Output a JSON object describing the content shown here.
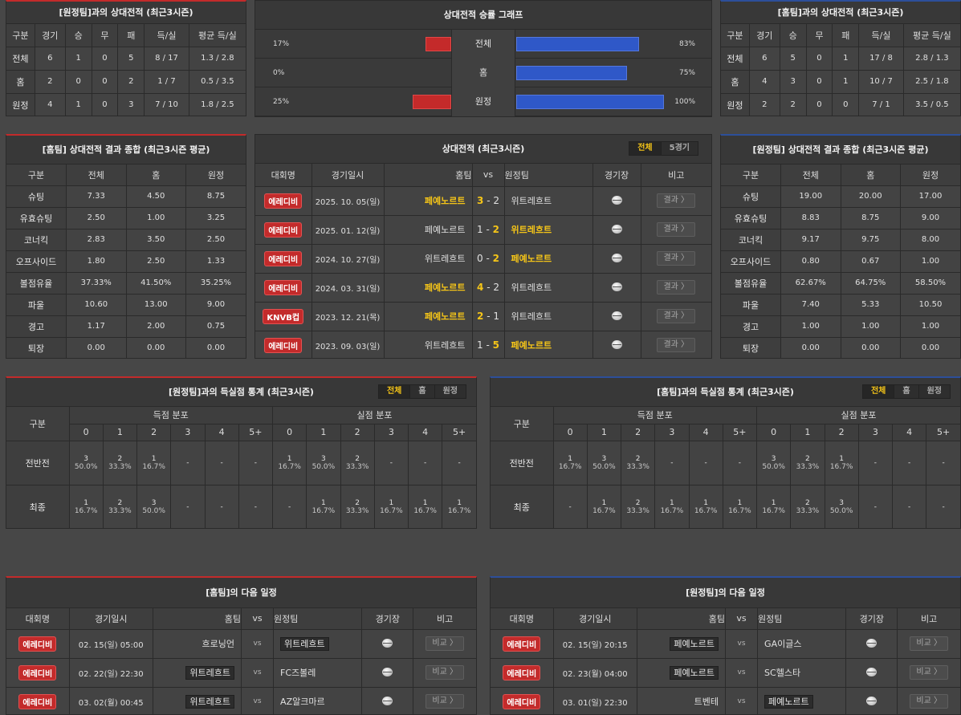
{
  "p1": {
    "title": "[원정팀]과의 상대전적 (최근3시즌)",
    "headers": [
      "구분",
      "경기",
      "승",
      "무",
      "패",
      "득/실",
      "평균 득/실"
    ],
    "rows": [
      [
        "전체",
        "6",
        "1",
        "0",
        "5",
        "8 / 17",
        "1.3 / 2.8"
      ],
      [
        "홈",
        "2",
        "0",
        "0",
        "2",
        "1 / 7",
        "0.5 / 3.5"
      ],
      [
        "원정",
        "4",
        "1",
        "0",
        "3",
        "7 / 10",
        "1.8 / 2.5"
      ]
    ]
  },
  "p2": {
    "title": "상대전적 승률 그래프",
    "rows": [
      {
        "left": "17%",
        "label": "전체",
        "right": "83%",
        "lv": 17,
        "rv": 83
      },
      {
        "left": "0%",
        "label": "홈",
        "right": "75%",
        "lv": 0,
        "rv": 75
      },
      {
        "left": "25%",
        "label": "원정",
        "right": "100%",
        "lv": 25,
        "rv": 100
      }
    ]
  },
  "p3": {
    "title": "[홈팀]과의 상대전적 (최근3시즌)",
    "headers": [
      "구분",
      "경기",
      "승",
      "무",
      "패",
      "득/실",
      "평균 득/실"
    ],
    "rows": [
      [
        "전체",
        "6",
        "5",
        "0",
        "1",
        "17 / 8",
        "2.8 / 1.3"
      ],
      [
        "홈",
        "4",
        "3",
        "0",
        "1",
        "10 / 7",
        "2.5 / 1.8"
      ],
      [
        "원정",
        "2",
        "2",
        "0",
        "0",
        "7 / 1",
        "3.5 / 0.5"
      ]
    ]
  },
  "p4": {
    "title": "[홈팀] 상대전적 결과 종합 (최근3시즌 평균)",
    "headers": [
      "구분",
      "전체",
      "홈",
      "원정"
    ],
    "rows": [
      [
        "슈팅",
        "7.33",
        "4.50",
        "8.75"
      ],
      [
        "유효슈팅",
        "2.50",
        "1.00",
        "3.25"
      ],
      [
        "코너킥",
        "2.83",
        "3.50",
        "2.50"
      ],
      [
        "오프사이드",
        "1.80",
        "2.50",
        "1.33"
      ],
      [
        "볼점유율",
        "37.33%",
        "41.50%",
        "35.25%"
      ],
      [
        "파울",
        "10.60",
        "13.00",
        "9.00"
      ],
      [
        "경고",
        "1.17",
        "2.00",
        "0.75"
      ],
      [
        "퇴장",
        "0.00",
        "0.00",
        "0.00"
      ]
    ]
  },
  "p5": {
    "title": "상대전적 (최근3시즌)",
    "toggle": [
      "전체",
      "5경기"
    ],
    "headers": {
      "league": "대회명",
      "date": "경기일시",
      "home": "홈팀",
      "vs": "vs",
      "away": "원정팀",
      "stadium": "경기장",
      "note": "비고"
    },
    "result_label": "결과 〉",
    "matches": [
      {
        "league": "에레디비",
        "date": "2025. 10. 05(일)",
        "home": "페예노르트",
        "hs": "3",
        "as": "2",
        "away": "위트레흐트",
        "hw": "home"
      },
      {
        "league": "에레디비",
        "date": "2025. 01. 12(일)",
        "home": "페예노르트",
        "hs": "1",
        "as": "2",
        "away": "위트레흐트",
        "hw": "away"
      },
      {
        "league": "에레디비",
        "date": "2024. 10. 27(일)",
        "home": "위트레흐트",
        "hs": "0",
        "as": "2",
        "away": "페예노르트",
        "hw": "away"
      },
      {
        "league": "에레디비",
        "date": "2024. 03. 31(일)",
        "home": "페예노르트",
        "hs": "4",
        "as": "2",
        "away": "위트레흐트",
        "hw": "home"
      },
      {
        "league": "KNVB컵",
        "date": "2023. 12. 21(목)",
        "home": "페예노르트",
        "hs": "2",
        "as": "1",
        "away": "위트레흐트",
        "hw": "home"
      },
      {
        "league": "에레디비",
        "date": "2023. 09. 03(일)",
        "home": "위트레흐트",
        "hs": "1",
        "as": "5",
        "away": "페예노르트",
        "hw": "away"
      }
    ]
  },
  "p6": {
    "title": "[원정팀] 상대전적 결과 종합 (최근3시즌 평균)",
    "headers": [
      "구분",
      "전체",
      "홈",
      "원정"
    ],
    "rows": [
      [
        "슈팅",
        "19.00",
        "20.00",
        "17.00"
      ],
      [
        "유효슈팅",
        "8.83",
        "8.75",
        "9.00"
      ],
      [
        "코너킥",
        "9.17",
        "9.75",
        "8.00"
      ],
      [
        "오프사이드",
        "0.80",
        "0.67",
        "1.00"
      ],
      [
        "볼점유율",
        "62.67%",
        "64.75%",
        "58.50%"
      ],
      [
        "파울",
        "7.40",
        "5.33",
        "10.50"
      ],
      [
        "경고",
        "1.00",
        "1.00",
        "1.00"
      ],
      [
        "퇴장",
        "0.00",
        "0.00",
        "0.00"
      ]
    ]
  },
  "p7": {
    "title": "[원정팀]과의 득실점 통계 (최근3시즌)",
    "toggle": [
      "전체",
      "홈",
      "원정"
    ],
    "col": "구분",
    "g1": "득점 분포",
    "g2": "실점 분포",
    "cols": [
      "0",
      "1",
      "2",
      "3",
      "4",
      "5+"
    ],
    "rows": [
      {
        "label": "전반전",
        "cells": [
          [
            "3",
            "50.0%"
          ],
          [
            "2",
            "33.3%"
          ],
          [
            "1",
            "16.7%"
          ],
          [
            "-",
            ""
          ],
          [
            "-",
            ""
          ],
          [
            "-",
            ""
          ],
          [
            "1",
            "16.7%"
          ],
          [
            "3",
            "50.0%"
          ],
          [
            "2",
            "33.3%"
          ],
          [
            "-",
            ""
          ],
          [
            "-",
            ""
          ],
          [
            "-",
            ""
          ]
        ]
      },
      {
        "label": "최종",
        "cells": [
          [
            "1",
            "16.7%"
          ],
          [
            "2",
            "33.3%"
          ],
          [
            "3",
            "50.0%"
          ],
          [
            "-",
            ""
          ],
          [
            "-",
            ""
          ],
          [
            "-",
            ""
          ],
          [
            "-",
            ""
          ],
          [
            "1",
            "16.7%"
          ],
          [
            "2",
            "33.3%"
          ],
          [
            "1",
            "16.7%"
          ],
          [
            "1",
            "16.7%"
          ],
          [
            "1",
            "16.7%"
          ]
        ]
      }
    ]
  },
  "p8": {
    "title": "[홈팀]과의 득실점 통계 (최근3시즌)",
    "toggle": [
      "전체",
      "홈",
      "원정"
    ],
    "col": "구분",
    "g1": "득점 분포",
    "g2": "실점 분포",
    "cols": [
      "0",
      "1",
      "2",
      "3",
      "4",
      "5+"
    ],
    "rows": [
      {
        "label": "전반전",
        "cells": [
          [
            "1",
            "16.7%"
          ],
          [
            "3",
            "50.0%"
          ],
          [
            "2",
            "33.3%"
          ],
          [
            "-",
            ""
          ],
          [
            "-",
            ""
          ],
          [
            "-",
            ""
          ],
          [
            "3",
            "50.0%"
          ],
          [
            "2",
            "33.3%"
          ],
          [
            "1",
            "16.7%"
          ],
          [
            "-",
            ""
          ],
          [
            "-",
            ""
          ],
          [
            "-",
            ""
          ]
        ]
      },
      {
        "label": "최종",
        "cells": [
          [
            "-",
            ""
          ],
          [
            "1",
            "16.7%"
          ],
          [
            "2",
            "33.3%"
          ],
          [
            "1",
            "16.7%"
          ],
          [
            "1",
            "16.7%"
          ],
          [
            "1",
            "16.7%"
          ],
          [
            "1",
            "16.7%"
          ],
          [
            "2",
            "33.3%"
          ],
          [
            "3",
            "50.0%"
          ],
          [
            "-",
            ""
          ],
          [
            "-",
            ""
          ],
          [
            "-",
            ""
          ]
        ]
      }
    ]
  },
  "p9": {
    "title": "[홈팀]의 다음 일정",
    "headers": {
      "league": "대회명",
      "date": "경기일시",
      "home": "홈팀",
      "vs": "vs",
      "away": "원정팀",
      "stadium": "경기장",
      "note": "비고"
    },
    "note_label": "비교 〉",
    "matches": [
      {
        "league": "에레디비",
        "date": "02. 15(일) 05:00",
        "home": "흐로닝언",
        "away": "위트레흐트",
        "box": "away"
      },
      {
        "league": "에레디비",
        "date": "02. 22(일) 22:30",
        "home": "위트레흐트",
        "away": "FC즈볼레",
        "box": "home"
      },
      {
        "league": "에레디비",
        "date": "03. 02(월) 00:45",
        "home": "위트레흐트",
        "away": "AZ알크마르",
        "box": "home"
      }
    ]
  },
  "p10": {
    "title": "[원정팀]의 다음 일정",
    "headers": {
      "league": "대회명",
      "date": "경기일시",
      "home": "홈팀",
      "vs": "vs",
      "away": "원정팀",
      "stadium": "경기장",
      "note": "비고"
    },
    "note_label": "비교 〉",
    "matches": [
      {
        "league": "에레디비",
        "date": "02. 15(일) 20:15",
        "home": "페예노르트",
        "away": "GA이글스",
        "box": "home"
      },
      {
        "league": "에레디비",
        "date": "02. 23(월) 04:00",
        "home": "페예노르트",
        "away": "SC헬스타",
        "box": "home"
      },
      {
        "league": "에레디비",
        "date": "03. 01(일) 22:30",
        "home": "트벤테",
        "away": "페예노르트",
        "box": "away"
      }
    ]
  }
}
